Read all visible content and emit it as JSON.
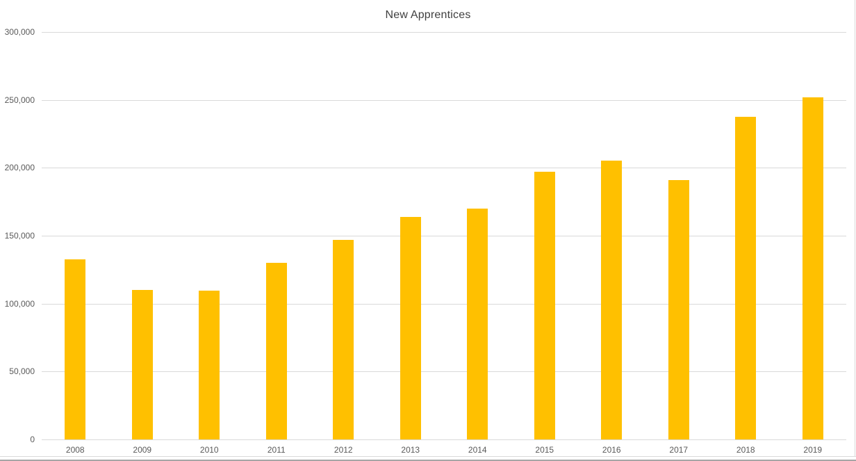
{
  "chart": {
    "colors": {
      "bar": "#FFC000",
      "gridline": "#D9D9D9",
      "axis_text": "#595959",
      "title_text": "#3F3F3F",
      "border": "#D9D9D9",
      "bottom_strip": "#A6A6A6",
      "background": "#FFFFFF"
    }
  },
  "chart_data": {
    "type": "bar",
    "title": "New Apprentices",
    "categories": [
      "2008",
      "2009",
      "2010",
      "2011",
      "2012",
      "2013",
      "2014",
      "2015",
      "2016",
      "2017",
      "2018",
      "2019"
    ],
    "values": [
      132500,
      110000,
      109500,
      130000,
      147000,
      164000,
      170000,
      197000,
      205500,
      191000,
      237500,
      252000
    ],
    "xlabel": "",
    "ylabel": "",
    "ylim": [
      0,
      300000
    ],
    "ytick_step": 50000,
    "ytick_labels": [
      "0",
      "50,000",
      "100,000",
      "150,000",
      "200,000",
      "250,000",
      "300,000"
    ],
    "grid": true,
    "legend": false,
    "bar_color": "#FFC000"
  }
}
